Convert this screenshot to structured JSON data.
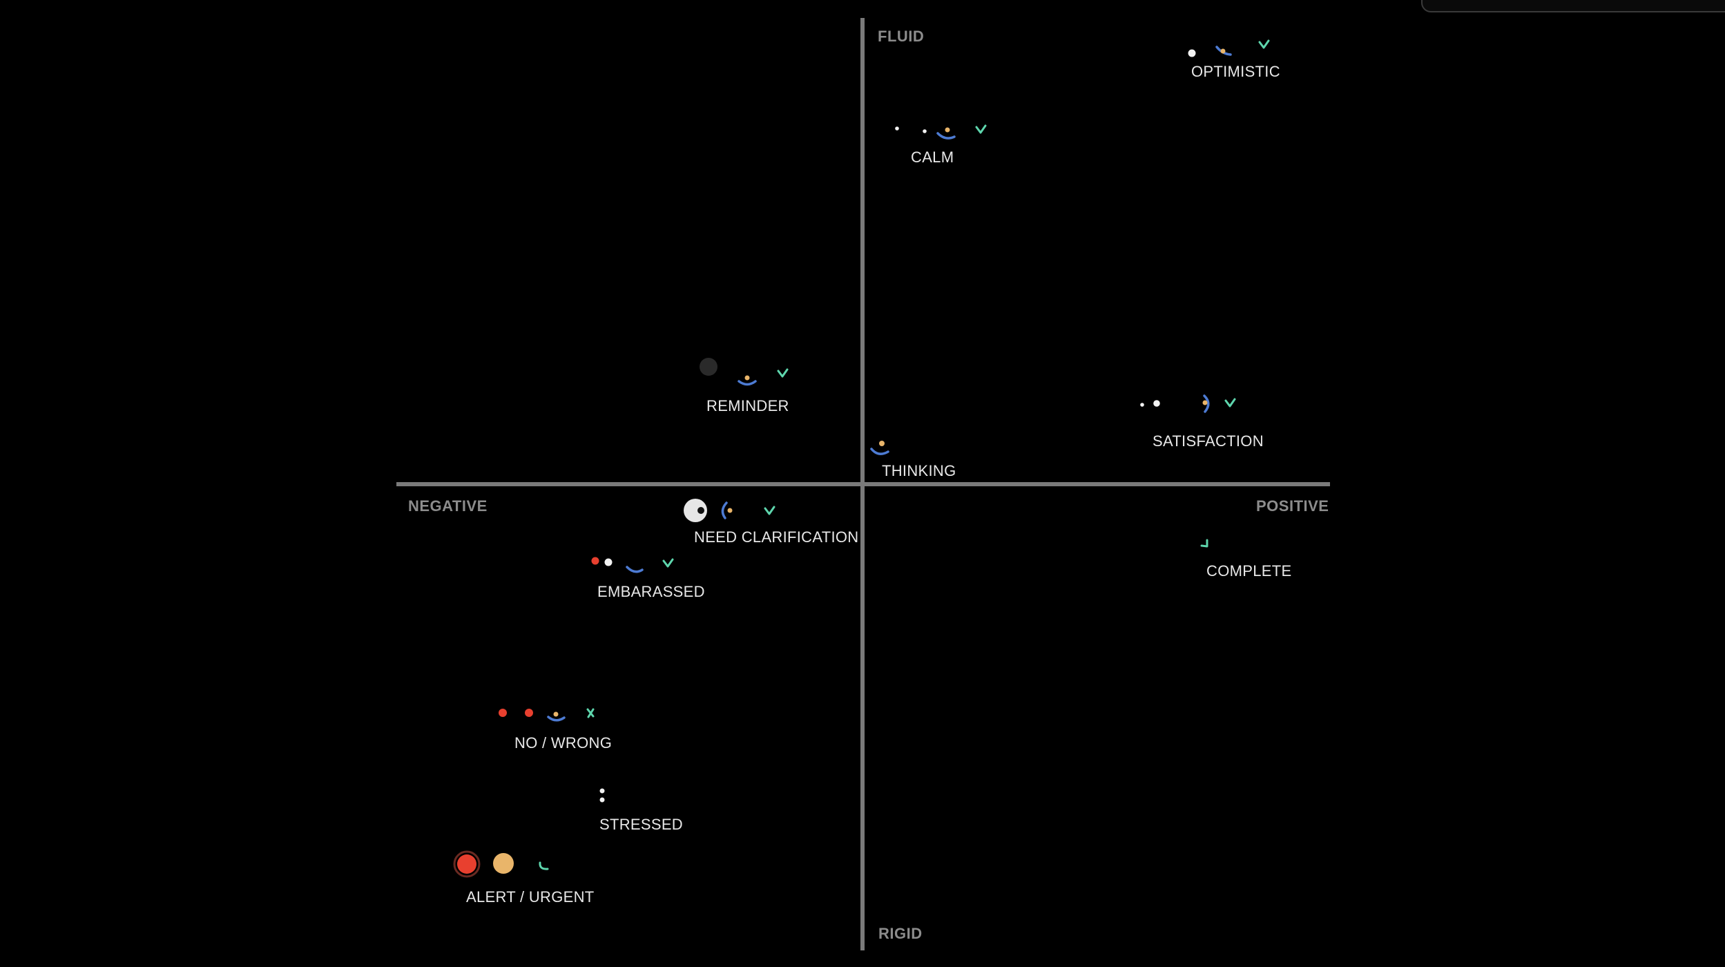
{
  "axes": {
    "top": "FLUID",
    "bottom": "RIGID",
    "left": "NEGATIVE",
    "right": "POSITIVE"
  },
  "colors": {
    "background": "#000000",
    "axis": "#7a7a7a",
    "axis_label": "#8c8c8c",
    "label": "#e8e8e8",
    "white": "#f2f2f2",
    "red": "#e8402f",
    "amber": "#e9b56a",
    "blue": "#4d7bd3",
    "green": "#5ed6ad",
    "dark": "#2a2a2a"
  },
  "emotions": [
    {
      "id": "optimistic",
      "label": "OPTIMISTIC",
      "icons": [
        "white-dot-icon",
        "blue-arc-icon",
        "amber-dot-icon",
        "green-check-icon"
      ]
    },
    {
      "id": "calm",
      "label": "CALM",
      "icons": [
        "white-dot-icon",
        "white-dot-icon",
        "blue-arc-icon",
        "amber-dot-icon",
        "green-check-icon"
      ]
    },
    {
      "id": "reminder",
      "label": "REMINDER",
      "icons": [
        "dark-circle-icon",
        "blue-arc-icon",
        "amber-dot-icon",
        "green-check-icon"
      ]
    },
    {
      "id": "satisfaction",
      "label": "SATISFACTION",
      "icons": [
        "white-dot-icon",
        "white-dot-icon",
        "blue-arc-icon",
        "amber-dot-icon",
        "green-check-icon"
      ]
    },
    {
      "id": "thinking",
      "label": "THINKING",
      "icons": [
        "blue-arc-icon",
        "amber-dot-icon"
      ]
    },
    {
      "id": "need-clarification",
      "label": "NEED CLARIFICATION",
      "icons": [
        "white-eye-icon",
        "blue-arc-icon",
        "amber-dot-icon",
        "green-check-icon"
      ]
    },
    {
      "id": "complete",
      "label": "COMPLETE",
      "icons": [
        "green-check-icon"
      ]
    },
    {
      "id": "embarassed",
      "label": "EMBARASSED",
      "icons": [
        "red-dot-icon",
        "white-dot-icon",
        "blue-arc-icon",
        "green-check-icon"
      ]
    },
    {
      "id": "no-wrong",
      "label": "NO / WRONG",
      "icons": [
        "red-dot-icon",
        "red-dot-icon",
        "blue-arc-icon",
        "amber-dot-icon",
        "green-cross-icon"
      ]
    },
    {
      "id": "stressed",
      "label": "STRESSED",
      "icons": [
        "white-dot-icon",
        "white-dot-icon"
      ]
    },
    {
      "id": "alert-urgent",
      "label": "ALERT / URGENT",
      "icons": [
        "red-circle-icon",
        "amber-circle-icon",
        "green-arc-icon"
      ]
    }
  ]
}
